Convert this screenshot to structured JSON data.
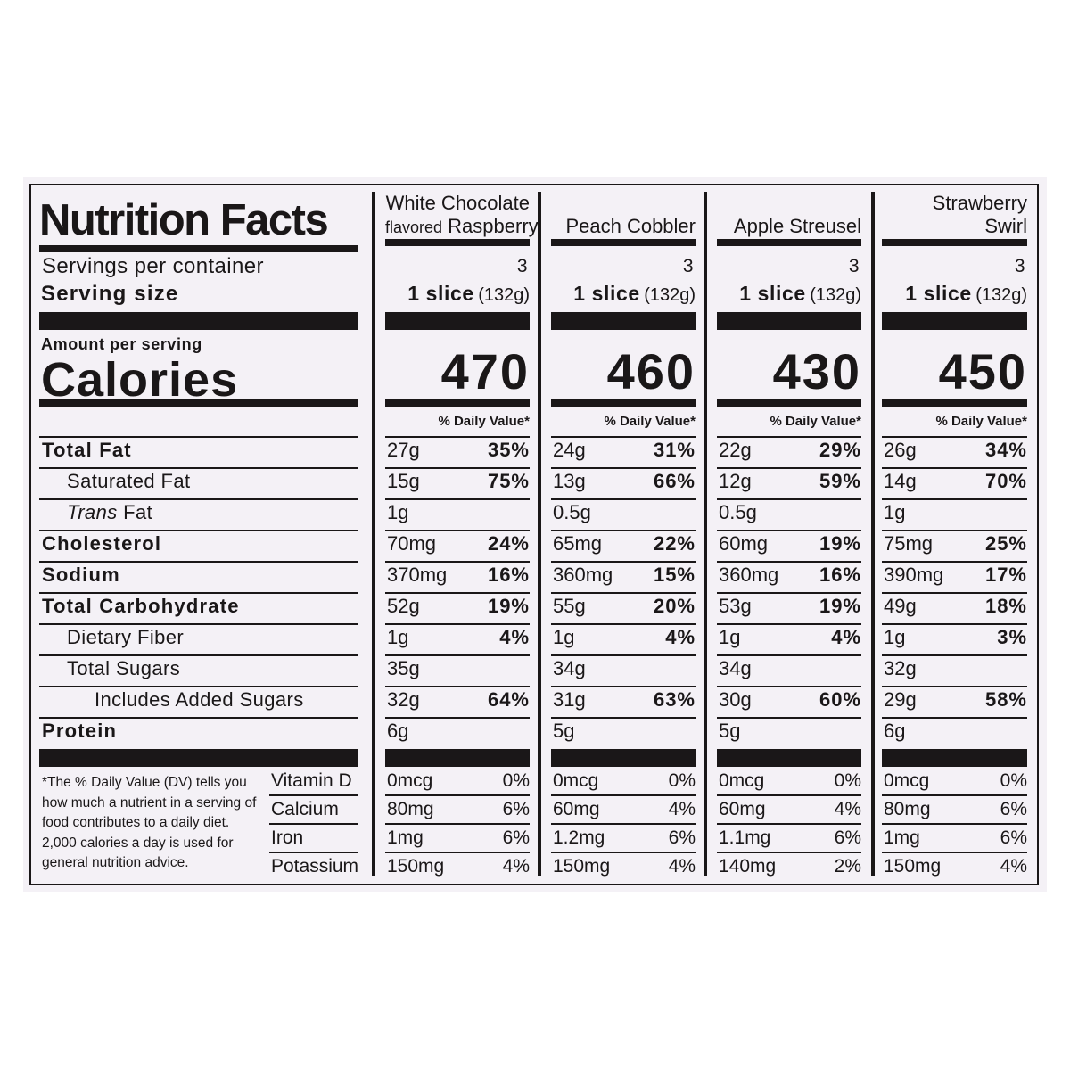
{
  "title": "Nutrition Facts",
  "labels": {
    "servings_per_container": "Servings per container",
    "serving_size": "Serving size",
    "amount_per_serving": "Amount per serving",
    "calories": "Calories",
    "daily_value": "% Daily Value*"
  },
  "nutrients": [
    {
      "key": "total_fat",
      "label": "Total Fat",
      "bold": true,
      "indent": 0
    },
    {
      "key": "sat_fat",
      "label": "Saturated Fat",
      "bold": false,
      "indent": 1
    },
    {
      "key": "trans_fat",
      "label_italic": "Trans",
      "label": " Fat",
      "bold": false,
      "indent": 1
    },
    {
      "key": "cholesterol",
      "label": "Cholesterol",
      "bold": true,
      "indent": 0
    },
    {
      "key": "sodium",
      "label": "Sodium",
      "bold": true,
      "indent": 0
    },
    {
      "key": "carbs",
      "label": "Total Carbohydrate",
      "bold": true,
      "indent": 0
    },
    {
      "key": "fiber",
      "label": "Dietary Fiber",
      "bold": false,
      "indent": 1
    },
    {
      "key": "sugars",
      "label": "Total Sugars",
      "bold": false,
      "indent": 1
    },
    {
      "key": "added_sugars",
      "label": "Includes Added Sugars",
      "bold": false,
      "indent": 2
    },
    {
      "key": "protein",
      "label": "Protein",
      "bold": true,
      "indent": 0
    }
  ],
  "vitamins": [
    "Vitamin D",
    "Calcium",
    "Iron",
    "Potassium"
  ],
  "footnote": "*The % Daily Value (DV) tells you how much a nutrient in a serving of food contributes to a daily diet. 2,000 calories a day is used for general nutrition advice.",
  "products": [
    {
      "name_line1": "White Chocolate",
      "name_line2_small": "flavored",
      "name_line2": "Raspberry",
      "servings": "3",
      "serving_bold": "1 slice",
      "serving_weight": "(132g)",
      "calories": "470",
      "rows": [
        [
          "27g",
          "35%"
        ],
        [
          "15g",
          "75%"
        ],
        [
          "1g",
          ""
        ],
        [
          "70mg",
          "24%"
        ],
        [
          "370mg",
          "16%"
        ],
        [
          "52g",
          "19%"
        ],
        [
          "1g",
          "4%"
        ],
        [
          "35g",
          ""
        ],
        [
          "32g",
          "64%"
        ],
        [
          "6g",
          ""
        ]
      ],
      "vitamins": [
        [
          "0mcg",
          "0%"
        ],
        [
          "80mg",
          "6%"
        ],
        [
          "1mg",
          "6%"
        ],
        [
          "150mg",
          "4%"
        ]
      ]
    },
    {
      "name_line1": "",
      "name_line2_small": "",
      "name_line2": "Peach Cobbler",
      "servings": "3",
      "serving_bold": "1 slice",
      "serving_weight": "(132g)",
      "calories": "460",
      "rows": [
        [
          "24g",
          "31%"
        ],
        [
          "13g",
          "66%"
        ],
        [
          "0.5g",
          ""
        ],
        [
          "65mg",
          "22%"
        ],
        [
          "360mg",
          "15%"
        ],
        [
          "55g",
          "20%"
        ],
        [
          "1g",
          "4%"
        ],
        [
          "34g",
          ""
        ],
        [
          "31g",
          "63%"
        ],
        [
          "5g",
          ""
        ]
      ],
      "vitamins": [
        [
          "0mcg",
          "0%"
        ],
        [
          "60mg",
          "4%"
        ],
        [
          "1.2mg",
          "6%"
        ],
        [
          "150mg",
          "4%"
        ]
      ]
    },
    {
      "name_line1": "",
      "name_line2_small": "",
      "name_line2": "Apple Streusel",
      "servings": "3",
      "serving_bold": "1 slice",
      "serving_weight": "(132g)",
      "calories": "430",
      "rows": [
        [
          "22g",
          "29%"
        ],
        [
          "12g",
          "59%"
        ],
        [
          "0.5g",
          ""
        ],
        [
          "60mg",
          "19%"
        ],
        [
          "360mg",
          "16%"
        ],
        [
          "53g",
          "19%"
        ],
        [
          "1g",
          "4%"
        ],
        [
          "34g",
          ""
        ],
        [
          "30g",
          "60%"
        ],
        [
          "5g",
          ""
        ]
      ],
      "vitamins": [
        [
          "0mcg",
          "0%"
        ],
        [
          "60mg",
          "4%"
        ],
        [
          "1.1mg",
          "6%"
        ],
        [
          "140mg",
          "2%"
        ]
      ]
    },
    {
      "name_line1": "Strawberry",
      "name_line2_small": "",
      "name_line2": "Swirl",
      "servings": "3",
      "serving_bold": "1 slice",
      "serving_weight": "(132g)",
      "calories": "450",
      "rows": [
        [
          "26g",
          "34%"
        ],
        [
          "14g",
          "70%"
        ],
        [
          "1g",
          ""
        ],
        [
          "75mg",
          "25%"
        ],
        [
          "390mg",
          "17%"
        ],
        [
          "49g",
          "18%"
        ],
        [
          "1g",
          "3%"
        ],
        [
          "32g",
          ""
        ],
        [
          "29g",
          "58%"
        ],
        [
          "6g",
          ""
        ]
      ],
      "vitamins": [
        [
          "0mcg",
          "0%"
        ],
        [
          "80mg",
          "6%"
        ],
        [
          "1mg",
          "6%"
        ],
        [
          "150mg",
          "4%"
        ]
      ]
    }
  ]
}
